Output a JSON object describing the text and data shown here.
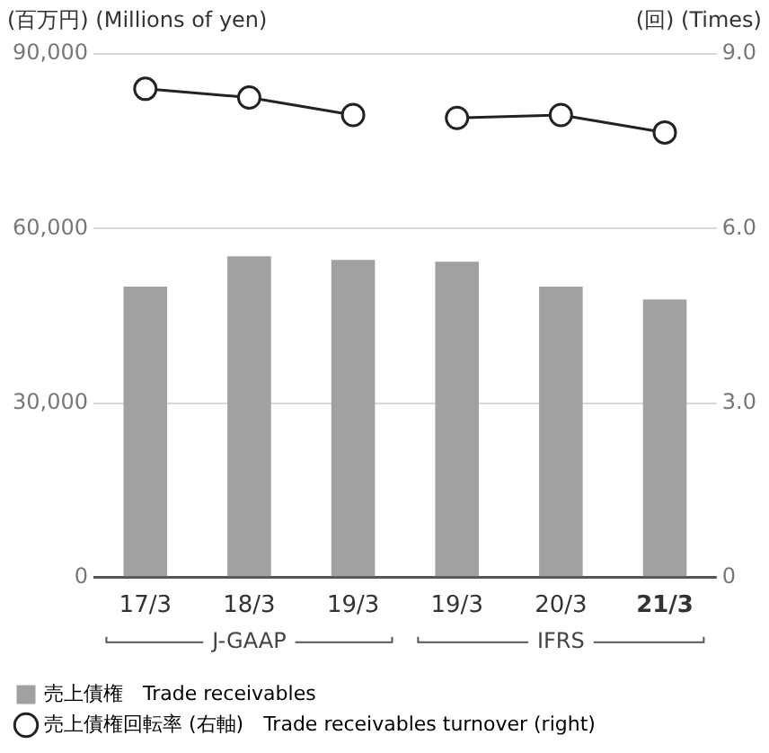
{
  "chart_data": {
    "type": "bar",
    "ylabel": "(百万円) (Millions of yen)",
    "y2label": "(回) (Times)",
    "categories": [
      "17/3",
      "18/3",
      "19/3",
      "19/3",
      "20/3",
      "21/3"
    ],
    "series": [
      {
        "name": "売上債権　Trade receivables",
        "color": "#a0a1a0",
        "values": [
          50000,
          55200,
          54600,
          54300,
          50000,
          47800
        ]
      },
      {
        "name": "売上債権回転率 (右軸)　Trade receivables turnover (right)",
        "type": "line",
        "axis": "y2",
        "color": "#222222",
        "marker": "circle",
        "values": [
          8.4,
          8.25,
          7.95,
          null,
          null,
          null
        ]
      },
      {
        "type": "line",
        "axis": "y2",
        "color": "#222222",
        "marker": "circle",
        "values": [
          null,
          null,
          null,
          7.9,
          7.95,
          7.65
        ]
      }
    ],
    "ylim": [
      0,
      90000
    ],
    "yticks": [
      0,
      {
        "value": 30000,
        "label": "30,000"
      },
      {
        "value": 60000,
        "label": "60,000"
      },
      {
        "value": 90000,
        "label": "90,000"
      }
    ],
    "y2lim": [
      0,
      9
    ],
    "y2ticks": [
      {
        "value": 0,
        "label": "0"
      },
      {
        "value": 3,
        "label": "3.0"
      },
      {
        "value": 6,
        "label": "6.0"
      },
      {
        "value": 9,
        "label": "9.0"
      }
    ],
    "annotations": [
      "J-GAAP",
      "IFRS"
    ],
    "grid": "y",
    "legend": "bottom"
  }
}
